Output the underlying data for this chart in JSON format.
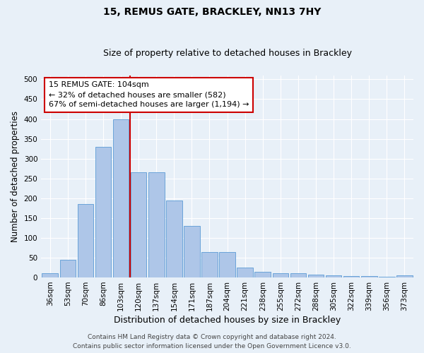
{
  "title_line1": "15, REMUS GATE, BRACKLEY, NN13 7HY",
  "title_line2": "Size of property relative to detached houses in Brackley",
  "xlabel": "Distribution of detached houses by size in Brackley",
  "ylabel": "Number of detached properties",
  "categories": [
    "36sqm",
    "53sqm",
    "70sqm",
    "86sqm",
    "103sqm",
    "120sqm",
    "137sqm",
    "154sqm",
    "171sqm",
    "187sqm",
    "204sqm",
    "221sqm",
    "238sqm",
    "255sqm",
    "272sqm",
    "288sqm",
    "305sqm",
    "322sqm",
    "339sqm",
    "356sqm",
    "373sqm"
  ],
  "values": [
    10,
    45,
    185,
    330,
    400,
    265,
    265,
    195,
    130,
    65,
    65,
    25,
    15,
    10,
    10,
    8,
    5,
    3,
    3,
    2,
    5
  ],
  "highlight_index": 4,
  "bar_color": "#aec6e8",
  "bar_edge_color": "#5b9bd5",
  "vline_color": "#cc0000",
  "vline_index": 4,
  "annotation_text": "15 REMUS GATE: 104sqm\n← 32% of detached houses are smaller (582)\n67% of semi-detached houses are larger (1,194) →",
  "annotation_box_facecolor": "#ffffff",
  "annotation_box_edgecolor": "#cc0000",
  "ylim": [
    0,
    510
  ],
  "yticks": [
    0,
    50,
    100,
    150,
    200,
    250,
    300,
    350,
    400,
    450,
    500
  ],
  "background_color": "#e8f0f8",
  "plot_bg_color": "#e8f0f8",
  "footer_line1": "Contains HM Land Registry data © Crown copyright and database right 2024.",
  "footer_line2": "Contains public sector information licensed under the Open Government Licence v3.0.",
  "title_fontsize": 10,
  "subtitle_fontsize": 9,
  "tick_fontsize": 7.5,
  "ylabel_fontsize": 8.5,
  "xlabel_fontsize": 9,
  "annotation_fontsize": 8,
  "footer_fontsize": 6.5
}
